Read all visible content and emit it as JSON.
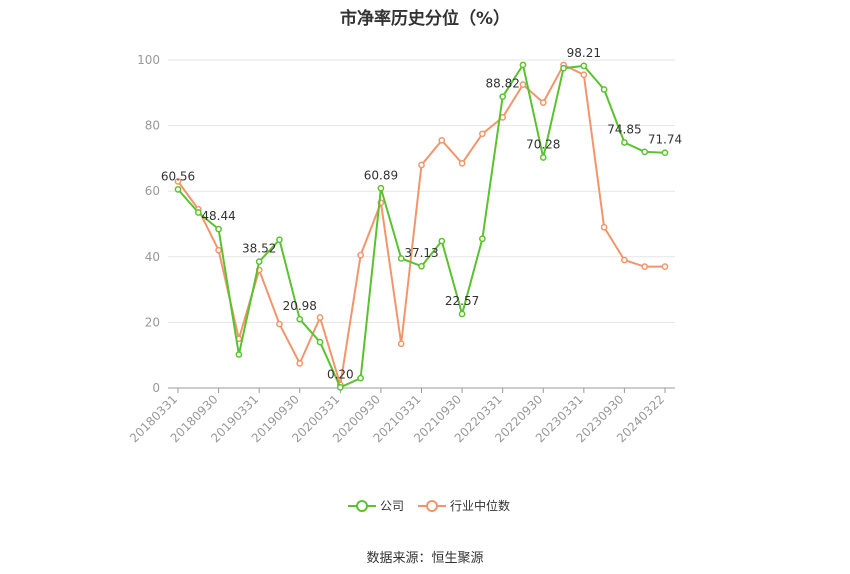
{
  "chart_data": {
    "type": "line",
    "title": "市净率历史分位（%）",
    "ylim": [
      0,
      100
    ],
    "y_ticks": [
      0,
      20,
      40,
      60,
      80,
      100
    ],
    "grid": true,
    "legend_position": "bottom-center",
    "x_tick_labels": [
      "20180331",
      "20180930",
      "20190331",
      "20190930",
      "20200331",
      "20200930",
      "20210331",
      "20210930",
      "20220331",
      "20220930",
      "20230331",
      "20230930",
      "20240322"
    ],
    "x": [
      "20180331",
      "20180630",
      "20180930",
      "20181231",
      "20190331",
      "20190630",
      "20190930",
      "20191231",
      "20200331",
      "20200630",
      "20200930",
      "20201231",
      "20210331",
      "20210630",
      "20210930",
      "20211231",
      "20220331",
      "20220630",
      "20220930",
      "20221231",
      "20230331",
      "20230630",
      "20230930",
      "20231231",
      "20240322"
    ],
    "series": [
      {
        "name": "公司",
        "color": "#5ac22e",
        "values": [
          60.56,
          53.5,
          48.44,
          10.2,
          38.52,
          45.2,
          20.98,
          14.0,
          0.2,
          3.0,
          60.89,
          39.5,
          37.13,
          44.8,
          22.57,
          45.5,
          88.82,
          98.5,
          70.28,
          97.5,
          98.21,
          91.0,
          74.85,
          72.0,
          71.74
        ],
        "labels": {
          "0": "60.56",
          "2": "48.44",
          "4": "38.52",
          "6": "20.98",
          "8": "0.20",
          "10": "60.89",
          "12": "37.13",
          "14": "22.57",
          "16": "88.82",
          "18": "70.28",
          "20": "98.21",
          "22": "74.85",
          "24": "71.74"
        }
      },
      {
        "name": "行业中位数",
        "color": "#f2956b",
        "values": [
          63.0,
          54.5,
          42.0,
          15.0,
          36.0,
          19.5,
          7.5,
          21.5,
          1.0,
          40.5,
          56.5,
          13.5,
          68.0,
          75.5,
          68.5,
          77.5,
          82.5,
          92.5,
          87.0,
          98.5,
          95.5,
          49.0,
          39.0,
          37.0,
          37.0
        ]
      }
    ]
  },
  "source_text": "数据来源：恒生聚源"
}
